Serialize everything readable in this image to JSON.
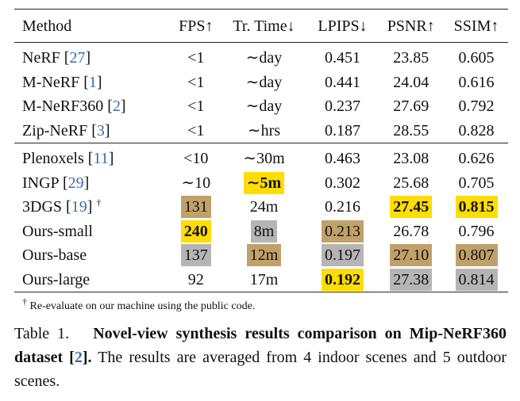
{
  "table": {
    "headers": [
      "Method",
      "FPS↑",
      "Tr. Time↓",
      "LPIPS↓",
      "PSNR↑",
      "SSIM↑"
    ],
    "rows": [
      {
        "name": "NeRF",
        "ref": "27",
        "fps": "<1",
        "time": "∼day",
        "lpips": "0.451",
        "psnr": "23.85",
        "ssim": "0.605"
      },
      {
        "name": "M-NeRF",
        "ref": "1",
        "fps": "<1",
        "time": "∼day",
        "lpips": "0.441",
        "psnr": "24.04",
        "ssim": "0.616"
      },
      {
        "name": "M-NeRF360",
        "ref": "2",
        "fps": "<1",
        "time": "∼day",
        "lpips": "0.237",
        "psnr": "27.69",
        "ssim": "0.792"
      },
      {
        "name": "Zip-NeRF",
        "ref": "3",
        "fps": "<1",
        "time": "∼hrs",
        "lpips": "0.187",
        "psnr": "28.55",
        "ssim": "0.828"
      },
      {
        "name": "Plenoxels",
        "ref": "11",
        "fps": "<10",
        "time": "∼30m",
        "lpips": "0.463",
        "psnr": "23.08",
        "ssim": "0.626"
      },
      {
        "name": "INGP",
        "ref": "29",
        "fps": "∼10",
        "time": "∼5m",
        "lpips": "0.302",
        "psnr": "25.68",
        "ssim": "0.705"
      },
      {
        "name": "3DGS",
        "ref": "19",
        "dagger": "†",
        "fps": "131",
        "time": "24m",
        "lpips": "0.216",
        "psnr": "27.45",
        "ssim": "0.815"
      },
      {
        "name": "Ours-small",
        "fps": "240",
        "time": "8m",
        "lpips": "0.213",
        "psnr": "26.78",
        "ssim": "0.796"
      },
      {
        "name": "Ours-base",
        "fps": "137",
        "time": "12m",
        "lpips": "0.197",
        "psnr": "27.10",
        "ssim": "0.807"
      },
      {
        "name": "Ours-large",
        "fps": "92",
        "time": "17m",
        "lpips": "0.192",
        "psnr": "27.38",
        "ssim": "0.814"
      }
    ],
    "highlight_colors": {
      "first": "#ffdd00",
      "second": "#c1a16a",
      "third": "#b5b5b5"
    }
  },
  "footnote": {
    "symbol": "†",
    "text": " Re-evaluate on our machine using the public code."
  },
  "caption": {
    "label": "Table 1.",
    "title_a": "Novel-view synthesis results comparison on Mip-NeRF360 dataset [",
    "title_ref": "2",
    "title_b": "].",
    "body": " The results are averaged from 4 indoor scenes and 5 outdoor scenes."
  }
}
